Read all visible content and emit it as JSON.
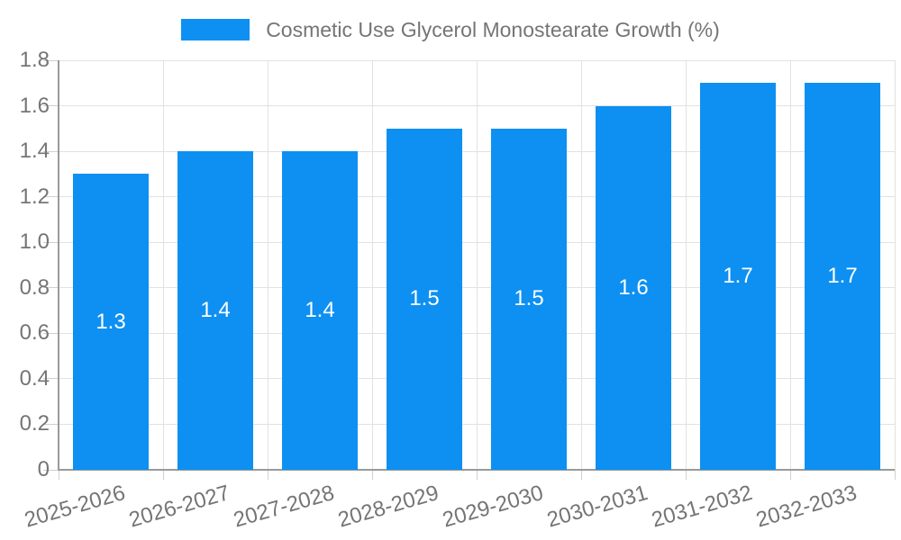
{
  "chart_data": {
    "type": "bar",
    "title": "Cosmetic Use Glycerol Monostearate Growth (%)",
    "categories": [
      "2025-2026",
      "2026-2027",
      "2027-2028",
      "2028-2029",
      "2029-2030",
      "2030-2031",
      "2031-2032",
      "2032-2033"
    ],
    "values": [
      1.3,
      1.4,
      1.4,
      1.5,
      1.5,
      1.6,
      1.7,
      1.7
    ],
    "value_labels": [
      "1.3",
      "1.4",
      "1.4",
      "1.5",
      "1.5",
      "1.6",
      "1.7",
      "1.7"
    ],
    "xlabel": "",
    "ylabel": "",
    "ylim": [
      0,
      1.8
    ],
    "y_ticks": [
      "0",
      "0.2",
      "0.4",
      "0.6",
      "0.8",
      "1.0",
      "1.2",
      "1.4",
      "1.6",
      "1.8"
    ],
    "grid": true,
    "legend_position": "top-center",
    "bar_color": "#0d90f2",
    "value_label_color": "#ffffff"
  },
  "colors": {
    "bar": "#0d90f2",
    "gridline": "#e2e2e2",
    "tick": "#d0d0d0",
    "axis": "#9a9a9a",
    "axis_text": "#757575",
    "legend_text": "#757575",
    "background": "#ffffff"
  }
}
